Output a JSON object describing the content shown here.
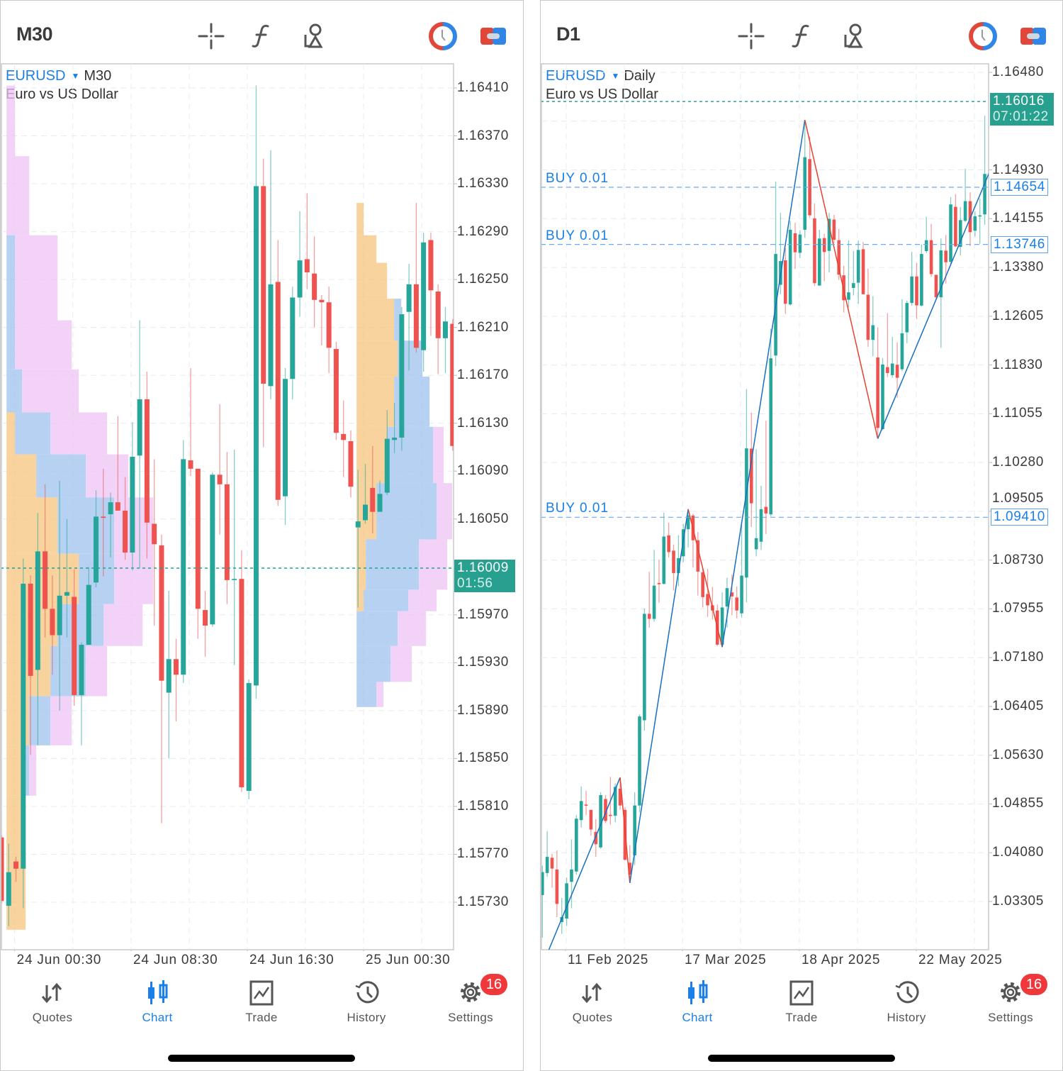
{
  "colors": {
    "bull": "#26a69a",
    "bear": "#ef5350",
    "accent": "#1a7fe8",
    "price_box": "#27a08f",
    "profile_orange": "#f7c47e",
    "profile_blue": "#9fc2ef",
    "profile_pink": "#efc3f5",
    "zigzag_up": "#1770c0",
    "zigzag_down": "#e8412e"
  },
  "header_icons": [
    "crosshair-icon",
    "function-icon",
    "objects-icon",
    "one-click-trading-icon",
    "account-toggle-icon"
  ],
  "tabs": [
    {
      "label": "Quotes",
      "icon": "quotes-arrows-icon"
    },
    {
      "label": "Chart",
      "icon": "candlestick-icon",
      "active": true
    },
    {
      "label": "Trade",
      "icon": "trade-chart-icon"
    },
    {
      "label": "History",
      "icon": "history-clock-icon"
    },
    {
      "label": "Settings",
      "icon": "gear-icon",
      "badge": "16"
    }
  ],
  "left": {
    "timeframe": "M30",
    "symbol": "EURUSD",
    "period": "M30",
    "description": "Euro vs US Dollar",
    "price_ticks": [
      "1.16410",
      "1.16370",
      "1.16330",
      "1.16290",
      "1.16250",
      "1.16210",
      "1.16170",
      "1.16130",
      "1.16090",
      "1.16050",
      "1.15970",
      "1.15930",
      "1.15890",
      "1.15850",
      "1.15810",
      "1.15770",
      "1.15730"
    ],
    "current_price": "1.16009",
    "countdown": "01:56",
    "time_ticks": [
      "24 Jun 00:30",
      "24 Jun 08:30",
      "24 Jun 16:30",
      "25 Jun 00:30"
    ],
    "candles": [
      [
        1.15784,
        1.15786,
        1.15729,
        1.15731
      ],
      [
        1.15727,
        1.15779,
        1.1571,
        1.15755
      ],
      [
        1.15764,
        1.15768,
        1.15747,
        1.15758
      ],
      [
        1.15758,
        1.16017,
        1.15725,
        1.15996
      ],
      [
        1.15996,
        1.16003,
        1.15853,
        1.15919
      ],
      [
        1.15924,
        1.16055,
        1.15861,
        1.16023
      ],
      [
        1.16023,
        1.16079,
        1.15951,
        1.15975
      ],
      [
        1.15975,
        1.16003,
        1.1592,
        1.15953
      ],
      [
        1.15953,
        1.16082,
        1.1589,
        1.15986
      ],
      [
        1.15986,
        1.1605,
        1.15951,
        1.15989
      ],
      [
        1.15985,
        1.16008,
        1.15894,
        1.15903
      ],
      [
        1.15903,
        1.15947,
        1.15861,
        1.15945
      ],
      [
        1.15945,
        1.1601,
        1.15945,
        1.15995
      ],
      [
        1.15997,
        1.16074,
        1.15993,
        1.16052
      ],
      [
        1.16052,
        1.16092,
        1.16002,
        1.16051
      ],
      [
        1.16054,
        1.16072,
        1.16018,
        1.16064
      ],
      [
        1.16064,
        1.16136,
        1.16057,
        1.16057
      ],
      [
        1.16057,
        1.16085,
        1.16016,
        1.16022
      ],
      [
        1.16022,
        1.16131,
        1.16007,
        1.16102
      ],
      [
        1.16103,
        1.16216,
        1.16009,
        1.1615
      ],
      [
        1.1615,
        1.16173,
        1.16017,
        1.16047
      ],
      [
        1.16046,
        1.161,
        1.15961,
        1.16029
      ],
      [
        1.16028,
        1.16037,
        1.15796,
        1.15915
      ],
      [
        1.15905,
        1.1599,
        1.1585,
        1.15933
      ],
      [
        1.15933,
        1.1595,
        1.15881,
        1.1592
      ],
      [
        1.1592,
        1.16116,
        1.15913,
        1.161
      ],
      [
        1.16099,
        1.16176,
        1.16086,
        1.16092
      ],
      [
        1.16092,
        1.16092,
        1.1595,
        1.15975
      ],
      [
        1.15974,
        1.1599,
        1.15935,
        1.15961
      ],
      [
        1.15962,
        1.16089,
        1.1596,
        1.16087
      ],
      [
        1.16087,
        1.16146,
        1.16037,
        1.16079
      ],
      [
        1.16079,
        1.16106,
        1.15979,
        1.15999
      ],
      [
        1.15999,
        1.16108,
        1.15928,
        1.16
      ],
      [
        1.16,
        1.16024,
        1.15822,
        1.15826
      ],
      [
        1.15823,
        1.15916,
        1.15816,
        1.15913
      ],
      [
        1.15911,
        1.16412,
        1.159,
        1.16328
      ],
      [
        1.16328,
        1.16351,
        1.1611,
        1.16163
      ],
      [
        1.16161,
        1.16358,
        1.1615,
        1.16246
      ],
      [
        1.16248,
        1.16283,
        1.16061,
        1.16066
      ],
      [
        1.16069,
        1.16176,
        1.16045,
        1.16167
      ],
      [
        1.16167,
        1.16244,
        1.1615,
        1.16235
      ],
      [
        1.16235,
        1.16307,
        1.16219,
        1.16266
      ],
      [
        1.16267,
        1.16322,
        1.16242,
        1.16256
      ],
      [
        1.16255,
        1.16286,
        1.1621,
        1.16233
      ],
      [
        1.16233,
        1.16237,
        1.16195,
        1.16231
      ],
      [
        1.16231,
        1.16244,
        1.16172,
        1.16193
      ],
      [
        1.16192,
        1.16198,
        1.16116,
        1.16122
      ],
      [
        1.16121,
        1.16149,
        1.16085,
        1.16116
      ],
      [
        1.16115,
        1.16124,
        1.16068,
        1.16077
      ],
      [
        1.16043,
        1.16091,
        1.15976,
        1.16048
      ],
      [
        1.16049,
        1.16096,
        1.16046,
        1.16062
      ],
      [
        1.16076,
        1.16111,
        1.16038,
        1.16056
      ],
      [
        1.16056,
        1.16082,
        1.16056,
        1.16071
      ],
      [
        1.16072,
        1.16141,
        1.1607,
        1.16117
      ],
      [
        1.16116,
        1.16147,
        1.16105,
        1.16118
      ],
      [
        1.16118,
        1.16227,
        1.16107,
        1.16221
      ],
      [
        1.16223,
        1.16263,
        1.16174,
        1.16246
      ],
      [
        1.16246,
        1.16314,
        1.16189,
        1.16193
      ],
      [
        1.16191,
        1.16289,
        1.16173,
        1.16281
      ],
      [
        1.16283,
        1.16289,
        1.16203,
        1.16241
      ],
      [
        1.1624,
        1.16246,
        1.16171,
        1.16201
      ],
      [
        1.16201,
        1.16227,
        1.16172,
        1.16215
      ],
      [
        1.16213,
        1.16217,
        1.16107,
        1.16111
      ]
    ],
    "volume_profiles": [
      {
        "start_bar": 0.7,
        "levels": [
          [
            1.16412,
            1.16353,
            0,
            0,
            12
          ],
          [
            1.16353,
            1.16287,
            0,
            0,
            32
          ],
          [
            1.16287,
            1.16216,
            0,
            12,
            60
          ],
          [
            1.16216,
            1.16175,
            0,
            12,
            80
          ],
          [
            1.16175,
            1.16139,
            0,
            22,
            80
          ],
          [
            1.16139,
            1.16104,
            12,
            50,
            80
          ],
          [
            1.16104,
            1.16068,
            42,
            70,
            60
          ],
          [
            1.16068,
            1.16021,
            72,
            80,
            55
          ],
          [
            1.16021,
            1.15979,
            102,
            50,
            55
          ],
          [
            1.15979,
            1.15944,
            72,
            65,
            55
          ],
          [
            1.15944,
            1.15902,
            62,
            50,
            30
          ],
          [
            1.15902,
            1.15861,
            32,
            30,
            30
          ],
          [
            1.15861,
            1.15819,
            22,
            10,
            10
          ],
          [
            1.15819,
            1.15772,
            22,
            0,
            0
          ],
          [
            1.15772,
            1.15707,
            27,
            0,
            0
          ]
        ]
      },
      {
        "start_bar": 48.8,
        "levels": [
          [
            1.16314,
            1.16287,
            10,
            0,
            0
          ],
          [
            1.16287,
            1.16264,
            28,
            0,
            0
          ],
          [
            1.16264,
            1.16234,
            43,
            0,
            0
          ],
          [
            1.16234,
            1.16199,
            53,
            10,
            0
          ],
          [
            1.16199,
            1.16169,
            58,
            35,
            0
          ],
          [
            1.16169,
            1.16127,
            53,
            50,
            0
          ],
          [
            1.16127,
            1.1608,
            43,
            65,
            15
          ],
          [
            1.1608,
            1.16033,
            28,
            85,
            22
          ],
          [
            1.16033,
            1.15991,
            13,
            75,
            40
          ],
          [
            1.15991,
            1.15973,
            10,
            63,
            40
          ],
          [
            1.15973,
            1.15944,
            0,
            58,
            40
          ],
          [
            1.15944,
            1.15914,
            0,
            48,
            30
          ],
          [
            1.15914,
            1.15893,
            0,
            28,
            10
          ]
        ]
      }
    ]
  },
  "right": {
    "timeframe": "D1",
    "symbol": "EURUSD",
    "period": "Daily",
    "description": "Euro vs US Dollar",
    "price_ticks": [
      "1.16480",
      "1.14930",
      "1.14155",
      "1.13380",
      "1.12605",
      "1.11830",
      "1.11055",
      "1.10280",
      "1.09505",
      "1.08730",
      "1.07955",
      "1.07180",
      "1.06405",
      "1.05630",
      "1.04855",
      "1.04080",
      "1.03305"
    ],
    "current_price": "1.16016",
    "countdown": "07:01:22",
    "time_ticks": [
      "11 Feb 2025",
      "17 Mar 2025",
      "18 Apr 2025",
      "22 May 2025"
    ],
    "positions": [
      {
        "label": "BUY 0.01",
        "price": "1.14654"
      },
      {
        "label": "BUY 0.01",
        "price": "1.13746"
      },
      {
        "label": "BUY 0.01",
        "price": "1.09410"
      }
    ],
    "zigzag": [
      [
        1.3,
        1.0253
      ],
      [
        16,
        1.05275
      ],
      [
        18,
        1.036
      ],
      [
        30,
        1.09539
      ],
      [
        37,
        1.07348
      ],
      [
        54,
        1.15724
      ],
      [
        69,
        1.1066
      ],
      [
        92,
        1.149
      ]
    ],
    "candles": [
      [
        1.03407,
        1.03874,
        1.02731,
        1.03772
      ],
      [
        1.03758,
        1.04425,
        1.03697,
        1.04014
      ],
      [
        1.04,
        1.04061,
        1.03524,
        1.03828
      ],
      [
        1.03814,
        1.04117,
        1.03057,
        1.03267
      ],
      [
        1.02978,
        1.03361,
        1.02791,
        1.03057
      ],
      [
        1.03034,
        1.03687,
        1.02917,
        1.03594
      ],
      [
        1.03617,
        1.04294,
        1.03197,
        1.03814
      ],
      [
        1.03781,
        1.04677,
        1.03734,
        1.04621
      ],
      [
        1.04598,
        1.05135,
        1.04481,
        1.04901
      ],
      [
        1.04845,
        1.05065,
        1.04677,
        1.04831
      ],
      [
        1.04761,
        1.04761,
        1.04351,
        1.04449
      ],
      [
        1.04411,
        1.04612,
        1.04014,
        1.04215
      ],
      [
        1.04164,
        1.05041,
        1.04145,
        1.04995
      ],
      [
        1.04934,
        1.04995,
        1.04551,
        1.04584
      ],
      [
        1.04682,
        1.05284,
        1.04528,
        1.04668
      ],
      [
        1.04668,
        1.05182,
        1.04565,
        1.05126
      ],
      [
        1.05098,
        1.05275,
        1.04761,
        1.04831
      ],
      [
        1.04761,
        1.04808,
        1.03958,
        1.03968
      ],
      [
        1.03921,
        1.04201,
        1.036,
        1.03734
      ],
      [
        1.04038,
        1.05041,
        1.03884,
        1.04831
      ],
      [
        1.04831,
        1.06279,
        1.04724,
        1.06246
      ],
      [
        1.06185,
        1.0796,
        1.06022,
        1.07876
      ],
      [
        1.07876,
        1.08543,
        1.07656,
        1.07796
      ],
      [
        1.07796,
        1.08893,
        1.0775,
        1.08324
      ],
      [
        1.08366,
        1.08739,
        1.08053,
        1.08347
      ],
      [
        1.08352,
        1.09483,
        1.08341,
        1.09104
      ],
      [
        1.09123,
        1.09325,
        1.08771,
        1.08857
      ],
      [
        1.0888,
        1.08977,
        1.08247,
        1.08524
      ],
      [
        1.08524,
        1.09127,
        1.08314,
        1.0876
      ],
      [
        1.0879,
        1.09303,
        1.08696,
        1.0922
      ],
      [
        1.0922,
        1.09539,
        1.08932,
        1.09438
      ],
      [
        1.09438,
        1.09464,
        1.08614,
        1.09045
      ],
      [
        1.09045,
        1.09175,
        1.08165,
        1.08547
      ],
      [
        1.08535,
        1.08591,
        1.07977,
        1.08142
      ],
      [
        1.08191,
        1.08591,
        1.07828,
        1.08011
      ],
      [
        1.08011,
        1.08303,
        1.07786,
        1.07929
      ],
      [
        1.07929,
        1.08022,
        1.07367,
        1.07386
      ],
      [
        1.07386,
        1.08217,
        1.07348,
        1.07977
      ],
      [
        1.07992,
        1.08449,
        1.07659,
        1.08284
      ],
      [
        1.08217,
        1.08498,
        1.07854,
        1.08153
      ],
      [
        1.08135,
        1.08311,
        1.07805,
        1.07929
      ],
      [
        1.07884,
        1.09295,
        1.07816,
        1.08483
      ],
      [
        1.08453,
        1.11448,
        1.0806,
        1.10505
      ],
      [
        1.10501,
        1.11074,
        1.09258,
        1.09632
      ],
      [
        1.08902,
        1.10493,
        1.0879,
        1.09078
      ],
      [
        1.09022,
        1.09913,
        1.08891,
        1.09539
      ],
      [
        1.09576,
        1.10943,
        1.09145,
        1.09471
      ],
      [
        1.09457,
        1.12407,
        1.09426,
        1.11936
      ],
      [
        1.11981,
        1.14744,
        1.11812,
        1.13594
      ],
      [
        1.13104,
        1.14246,
        1.12954,
        1.13481
      ],
      [
        1.13493,
        1.13689,
        1.12641,
        1.12803
      ],
      [
        1.12792,
        1.14122,
        1.12773,
        1.13979
      ],
      [
        1.13922,
        1.14092,
        1.13357,
        1.13621
      ],
      [
        1.13613,
        1.13971,
        1.1353,
        1.13903
      ],
      [
        1.13979,
        1.15724,
        1.13851,
        1.15132
      ],
      [
        1.15102,
        1.1546,
        1.14171,
        1.14209
      ],
      [
        1.1416,
        1.14397,
        1.13085,
        1.13131
      ],
      [
        1.13093,
        1.13979,
        1.13085,
        1.13839
      ],
      [
        1.13847,
        1.13915,
        1.13161,
        1.13625
      ],
      [
        1.13643,
        1.14246,
        1.133,
        1.14152
      ],
      [
        1.14141,
        1.14216,
        1.13764,
        1.1382
      ],
      [
        1.13813,
        1.1399,
        1.1318,
        1.13266
      ],
      [
        1.13255,
        1.13406,
        1.12663,
        1.12859
      ],
      [
        1.12867,
        1.13809,
        1.12746,
        1.12984
      ],
      [
        1.13055,
        1.13643,
        1.12935,
        1.13131
      ],
      [
        1.13138,
        1.13809,
        1.12803,
        1.13658
      ],
      [
        1.1367,
        1.13783,
        1.12954,
        1.12954
      ],
      [
        1.12947,
        1.13361,
        1.1212,
        1.12229
      ],
      [
        1.12229,
        1.12925,
        1.11966,
        1.12462
      ],
      [
        1.1195,
        1.12428,
        1.1066,
        1.10829
      ],
      [
        1.10811,
        1.11939,
        1.10792,
        1.11838
      ],
      [
        1.11796,
        1.12654,
        1.11638,
        1.11702
      ],
      [
        1.11668,
        1.12278,
        1.11627,
        1.11853
      ],
      [
        1.11834,
        1.12191,
        1.11307,
        1.11627
      ],
      [
        1.11762,
        1.12876,
        1.11732,
        1.12334
      ],
      [
        1.12349,
        1.12853,
        1.12176,
        1.12816
      ],
      [
        1.12816,
        1.13628,
        1.12774,
        1.13237
      ],
      [
        1.13237,
        1.13452,
        1.1256,
        1.12778
      ],
      [
        1.12774,
        1.13745,
        1.12756,
        1.13594
      ],
      [
        1.1364,
        1.14185,
        1.13606,
        1.13813
      ],
      [
        1.13813,
        1.14072,
        1.1323,
        1.13275
      ],
      [
        1.13263,
        1.13263,
        1.1288,
        1.12906
      ],
      [
        1.12906,
        1.13839,
        1.12101,
        1.13651
      ],
      [
        1.13647,
        1.13895,
        1.13124,
        1.13463
      ],
      [
        1.1347,
        1.14497,
        1.13418,
        1.14381
      ],
      [
        1.14343,
        1.14546,
        1.13707,
        1.13715
      ],
      [
        1.13707,
        1.14343,
        1.13568,
        1.14132
      ],
      [
        1.14121,
        1.14949,
        1.14102,
        1.14433
      ],
      [
        1.14433,
        1.14573,
        1.13719,
        1.13941
      ],
      [
        1.13963,
        1.14272,
        1.13869,
        1.14193
      ],
      [
        1.14196,
        1.14479,
        1.13756,
        1.14208
      ],
      [
        1.14223,
        1.15793,
        1.14057,
        1.14866
      ]
    ]
  }
}
